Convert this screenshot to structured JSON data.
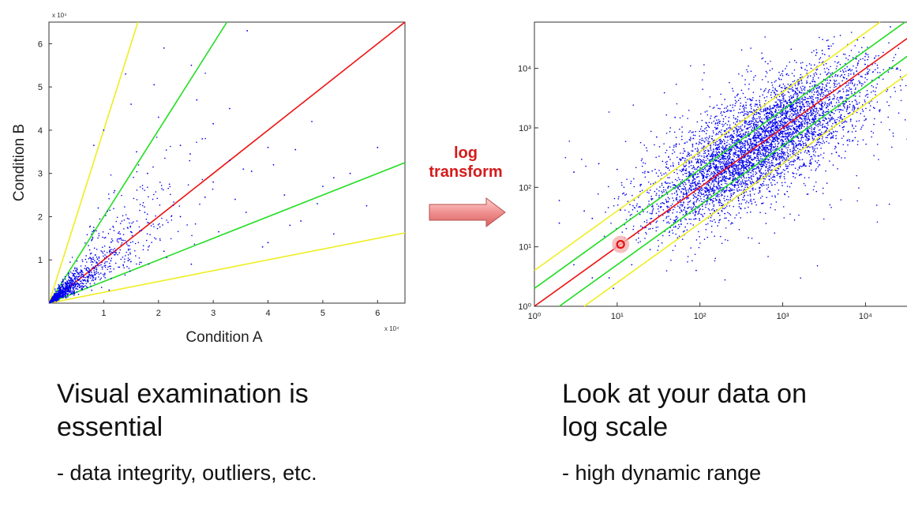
{
  "chart_data": [
    {
      "type": "scatter",
      "title": "",
      "xlabel": "Condition A",
      "ylabel": "Condition B",
      "xlim": [
        0,
        65000
      ],
      "ylim": [
        0,
        65000
      ],
      "x_ticks": [
        "1",
        "2",
        "3",
        "4",
        "5",
        "6"
      ],
      "y_ticks": [
        "1",
        "2",
        "3",
        "4",
        "5",
        "6"
      ],
      "x_multiplier": "x 10⁴",
      "y_multiplier": "x 10⁴",
      "series": [
        {
          "color": "#0000ee",
          "kind": "points",
          "points": [
            [
              36200,
              63000
            ],
            [
              21000,
              59000
            ],
            [
              19200,
              50500
            ],
            [
              8200,
              36500
            ],
            [
              35500,
              31000
            ],
            [
              46000,
              19000
            ],
            [
              40000,
              14000
            ],
            [
              39000,
              13000
            ],
            [
              30000,
              41500
            ],
            [
              25800,
              34500
            ],
            [
              28000,
              38000
            ],
            [
              33000,
              33000
            ],
            [
              50000,
              27000
            ],
            [
              58000,
              22500
            ],
            [
              40000,
              36000
            ],
            [
              45000,
              35500
            ],
            [
              55000,
              30000
            ],
            [
              14000,
              53000
            ],
            [
              15000,
              46000
            ],
            [
              10000,
              40000
            ],
            [
              26000,
              55000
            ],
            [
              30000,
              28000
            ],
            [
              48000,
              42000
            ],
            [
              28500,
              24500
            ],
            [
              24000,
              20000
            ],
            [
              22000,
              27500
            ],
            [
              18000,
              30000
            ],
            [
              12000,
              26000
            ],
            [
              34000,
              24000
            ],
            [
              43000,
              25000
            ],
            [
              49000,
              23000
            ],
            [
              60000,
              36000
            ],
            [
              52000,
              29000
            ],
            [
              37000,
              30500
            ],
            [
              33000,
              45000
            ],
            [
              41000,
              32000
            ],
            [
              20000,
              43000
            ],
            [
              16000,
              35000
            ],
            [
              44000,
              18000
            ],
            [
              52000,
              16000
            ],
            [
              36000,
              21000
            ],
            [
              31000,
              16500
            ],
            [
              24000,
              36500
            ],
            [
              27000,
              47000
            ],
            [
              17500,
              21000
            ],
            [
              13000,
              16000
            ],
            [
              21000,
              12000
            ],
            [
              26000,
              9000
            ],
            [
              9000,
              22000
            ],
            [
              11000,
              3000
            ]
          ]
        },
        {
          "color": "#ee1111",
          "kind": "line",
          "slope": 1
        },
        {
          "color": "#22dd22",
          "kind": "line",
          "slope": 2
        },
        {
          "color": "#22dd22",
          "kind": "line",
          "slope": 0.5
        },
        {
          "color": "#eeee22",
          "kind": "line",
          "slope": 4
        },
        {
          "color": "#eeee22",
          "kind": "line",
          "slope": 0.25
        }
      ]
    },
    {
      "type": "scatter",
      "title": "",
      "xlabel": "",
      "ylabel": "",
      "scale": "log",
      "xlim": [
        1,
        60000
      ],
      "ylim": [
        1,
        60000
      ],
      "x_ticks": [
        "10⁰",
        "10¹",
        "10²",
        "10³",
        "10⁴"
      ],
      "y_ticks": [
        "10⁰",
        "10¹",
        "10²",
        "10³",
        "10⁴"
      ],
      "highlight_point": [
        11,
        11
      ],
      "series": [
        {
          "color": "#0000ee",
          "kind": "points",
          "points": [
            [
              2,
              25
            ],
            [
              2,
              60
            ],
            [
              3,
              180
            ],
            [
              4,
              8
            ],
            [
              5,
              30
            ],
            [
              6,
              250
            ],
            [
              7,
              15
            ],
            [
              8,
              3
            ],
            [
              12,
              80
            ],
            [
              15,
              5
            ],
            [
              20,
              300
            ],
            [
              25,
              9
            ],
            [
              30,
              700
            ],
            [
              40,
              20
            ],
            [
              50,
              1500
            ],
            [
              60,
              40
            ],
            [
              90,
              4
            ],
            [
              120,
              1200
            ],
            [
              150,
              40
            ],
            [
              200,
              3000
            ],
            [
              300,
              90
            ],
            [
              400,
              200
            ],
            [
              800,
              150
            ],
            [
              1000,
              9000
            ],
            [
              1500,
              300
            ],
            [
              2000,
              1200
            ],
            [
              3000,
              20000
            ],
            [
              4000,
              700
            ],
            [
              6000,
              3000
            ],
            [
              8000,
              30000
            ],
            [
              10000,
              5000
            ],
            [
              15000,
              2000
            ],
            [
              20000,
              50000
            ],
            [
              3,
              5
            ],
            [
              5,
              3
            ],
            [
              9,
              2
            ],
            [
              4,
              40
            ],
            [
              10,
              200
            ]
          ]
        },
        {
          "color": "#ee1111",
          "kind": "line",
          "ratio": 1
        },
        {
          "color": "#22dd22",
          "kind": "line",
          "ratio": 2
        },
        {
          "color": "#22dd22",
          "kind": "line",
          "ratio": 0.5
        },
        {
          "color": "#eeee22",
          "kind": "line",
          "ratio": 4
        },
        {
          "color": "#eeee22",
          "kind": "line",
          "ratio": 0.25
        }
      ]
    }
  ],
  "arrow": {
    "line1": "log",
    "line2": "transform"
  },
  "left_text": {
    "headline_1": "Visual examination is",
    "headline_2": "essential",
    "bullet": "- data integrity, outliers, etc."
  },
  "right_text": {
    "headline_1": "Look at your data on",
    "headline_2": "log scale",
    "bullet": "- high dynamic range"
  }
}
